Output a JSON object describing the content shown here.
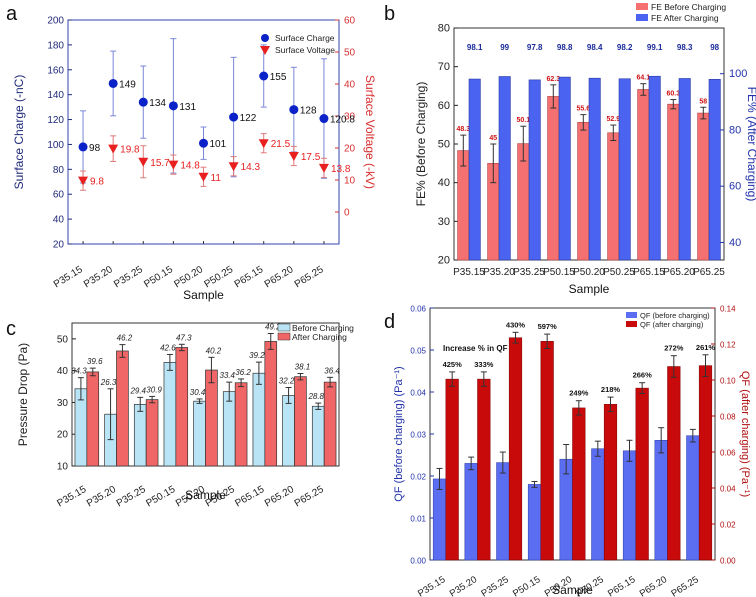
{
  "panel_labels": [
    "a",
    "b",
    "c",
    "d"
  ],
  "chart_data": [
    {
      "panel": "a",
      "type": "scatter",
      "xlabel": "Sample",
      "ylabel": "Surface Charge (-nC)",
      "y2label": "Surface Voltage (-kV)",
      "categories": [
        "P35.15",
        "P35.20",
        "P35.25",
        "P50.15",
        "P50.20",
        "P50.25",
        "P65.15",
        "P65.20",
        "P65.25"
      ],
      "ylim": [
        20,
        200
      ],
      "yticks": [
        "20",
        "40",
        "60",
        "80",
        "100",
        "120",
        "140",
        "160",
        "180",
        "200"
      ],
      "y2lim": [
        -10,
        60
      ],
      "y2ticks": [
        "0",
        "10",
        "20",
        "30",
        "40",
        "50",
        "60"
      ],
      "legend": [
        "Surface Charge",
        "Surface Voltage"
      ],
      "series": [
        {
          "name": "Surface Charge",
          "axis": "left",
          "color": "#0a22c8",
          "values": [
            98,
            149,
            134,
            131,
            101,
            122,
            155,
            128,
            120.8
          ],
          "labels": [
            "98",
            "149",
            "134",
            "131",
            "101",
            "122",
            "155",
            "128",
            "120.8"
          ],
          "err": [
            29,
            26,
            29,
            54,
            13,
            48,
            25,
            34,
            48
          ]
        },
        {
          "name": "Surface Voltage",
          "axis": "right",
          "color": "#e82020",
          "values": [
            9.8,
            19.8,
            15.7,
            14.8,
            11,
            14.3,
            21.5,
            17.5,
            13.8
          ],
          "labels": [
            "9.8",
            "19.8",
            "15.7",
            "14.8",
            "11",
            "14.3",
            "21.5",
            "17.5",
            "13.8"
          ],
          "err": [
            3,
            4,
            5,
            3,
            3,
            3,
            3,
            3,
            3
          ]
        }
      ]
    },
    {
      "panel": "b",
      "type": "bar",
      "xlabel": "Sample",
      "ylabel": "FE% (Before Charging)",
      "y2label": "FE% (After Charging)",
      "categories": [
        "P35.15",
        "P35.20",
        "P35.25",
        "P50.15",
        "P50.20",
        "P50.25",
        "P65.15",
        "P65.20",
        "P65.25"
      ],
      "ylim": [
        20,
        80
      ],
      "yticks": [
        "20",
        "30",
        "40",
        "50",
        "60",
        "70",
        "80"
      ],
      "y2lim": [
        33.75,
        116.25
      ],
      "y2ticks": [
        "40",
        "60",
        "80",
        "100"
      ],
      "legend": [
        "FE Before Charging",
        "FE After Charging"
      ],
      "series": [
        {
          "name": "FE Before Charging",
          "axis": "left",
          "color": "#f57070",
          "values": [
            48.3,
            45,
            50.1,
            62.3,
            55.6,
            52.9,
            64.1,
            60.3,
            58
          ],
          "labels": [
            "48.3",
            "45",
            "50.1",
            "62.3",
            "55.6",
            "52.9",
            "64.1",
            "60.3",
            "58"
          ],
          "err": [
            4,
            5,
            4.5,
            3,
            2,
            2,
            1.5,
            1.2,
            1.5
          ]
        },
        {
          "name": "FE After Charging",
          "axis": "right",
          "color": "#4a63f0",
          "values": [
            98.1,
            99,
            97.8,
            98.8,
            98.4,
            98.2,
            99.1,
            98.3,
            98
          ],
          "labels": [
            "98.1",
            "99",
            "97.8",
            "98.8",
            "98.4",
            "98.2",
            "99.1",
            "98.3",
            "98"
          ],
          "err": [
            0.3,
            0.3,
            0.3,
            0.3,
            0.3,
            0.3,
            0.3,
            0.3,
            0.3
          ]
        }
      ]
    },
    {
      "panel": "c",
      "type": "bar",
      "xlabel": "Sample",
      "ylabel": "Pressure Drop (Pa)",
      "categories": [
        "P35.15",
        "P35.20",
        "P35.25",
        "P50.15",
        "P50.20",
        "P50.25",
        "P65.15",
        "P65.20",
        "P65.25"
      ],
      "ylim": [
        10,
        55
      ],
      "yticks": [
        "10",
        "20",
        "30",
        "40",
        "50"
      ],
      "legend": [
        "Before Charging",
        "After Charging"
      ],
      "series": [
        {
          "name": "Before Charging",
          "color": "#b8e4f5",
          "values": [
            34.3,
            26.3,
            29.4,
            42.6,
            30.4,
            33.4,
            39.2,
            32.2,
            28.8
          ],
          "labels": [
            "34.3",
            "26.3",
            "29.4",
            "42.6",
            "30.4",
            "33.4",
            "39.2",
            "32.2",
            "28.8"
          ],
          "err": [
            3.5,
            8,
            2.2,
            2.5,
            0.7,
            3,
            3.5,
            2.5,
            1
          ]
        },
        {
          "name": "After Charging",
          "color": "#f06666",
          "values": [
            39.6,
            46.2,
            30.9,
            47.3,
            40.2,
            36.2,
            49.2,
            38.1,
            36.4
          ],
          "labels": [
            "39.6",
            "46.2",
            "30.9",
            "47.3",
            "40.2",
            "36.2",
            "49.2",
            "38.1",
            "36.4"
          ],
          "err": [
            1.2,
            2,
            1,
            1,
            4,
            1.2,
            2.5,
            1,
            1.5
          ]
        }
      ]
    },
    {
      "panel": "d",
      "type": "bar",
      "xlabel": "Sample",
      "ylabel": "QF (before charging) (Pa⁻¹)",
      "y2label": "QF (after charging) (Pa⁻¹)",
      "categories": [
        "P35.15",
        "P35.20",
        "P35.25",
        "P50.15",
        "P50.20",
        "P50.25",
        "P65.15",
        "P65.20",
        "P65.25"
      ],
      "ylim": [
        0,
        0.06
      ],
      "yticks": [
        "0.00",
        "0.01",
        "0.02",
        "0.03",
        "0.04",
        "0.05",
        "0.06"
      ],
      "y2lim": [
        0,
        0.14
      ],
      "y2ticks": [
        "0.00",
        "0.02",
        "0.04",
        "0.06",
        "0.08",
        "0.10",
        "0.12",
        "0.14"
      ],
      "legend": [
        "QF (before charging)",
        "QF (after charging)"
      ],
      "annotation": "Increase % in QF",
      "increase_labels": [
        "425%",
        "333%",
        "430%",
        "597%",
        "249%",
        "218%",
        "266%",
        "272%",
        "261%"
      ],
      "series": [
        {
          "name": "QF (before charging)",
          "axis": "left",
          "color": "#5b6ef2",
          "values": [
            0.0193,
            0.023,
            0.0232,
            0.018,
            0.024,
            0.0265,
            0.026,
            0.0285,
            0.0296
          ],
          "err": [
            0.0025,
            0.0015,
            0.0025,
            0.0007,
            0.0035,
            0.0018,
            0.0025,
            0.003,
            0.0015
          ]
        },
        {
          "name": "QF (after charging)",
          "axis": "right",
          "color": "#c80a0a",
          "values": [
            0.1005,
            0.1005,
            0.1235,
            0.1215,
            0.0845,
            0.0865,
            0.0955,
            0.1075,
            0.108
          ],
          "err": [
            0.004,
            0.004,
            0.003,
            0.004,
            0.004,
            0.004,
            0.003,
            0.006,
            0.006
          ]
        }
      ]
    }
  ]
}
